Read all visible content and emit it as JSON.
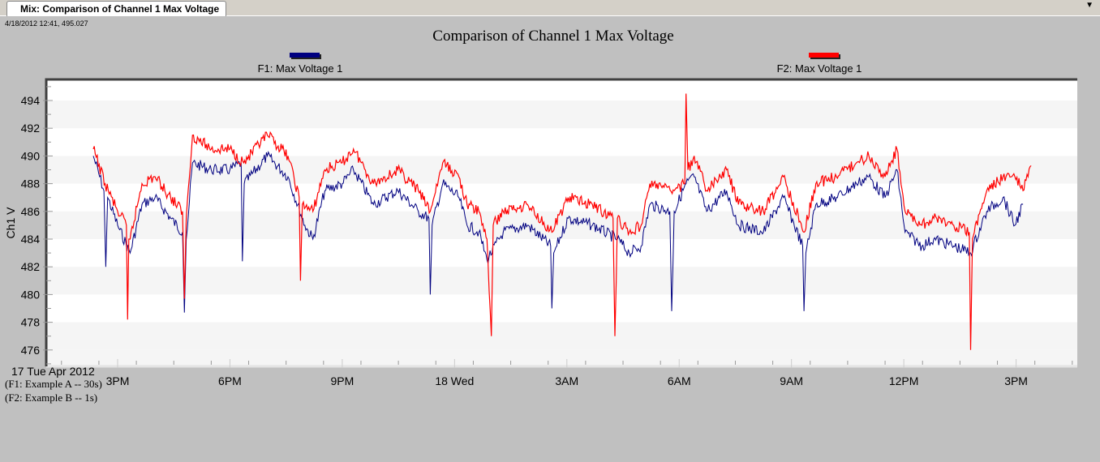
{
  "tab": {
    "label": "Mix: Comparison of Channel 1 Max Voltage",
    "menu_icon": "triangle-down-icon"
  },
  "cursor_readout": "4/18/2012 12:41, 495.027",
  "footer": {
    "date": "17 Tue Apr 2012",
    "f1_source": "(F1: Example A -- 30s)",
    "f2_source": "(F2: Example B -- 1s)"
  },
  "chart_data": {
    "type": "line",
    "title": "Comparison of Channel 1 Max Voltage",
    "xlabel": "",
    "ylabel": "Ch1 V",
    "ylim": [
      474.5,
      496
    ],
    "yticks": [
      494,
      492,
      490,
      488,
      486,
      484,
      482,
      480,
      478,
      476
    ],
    "xlim": [
      "2012-04-17T12:17",
      "2012-04-18T16:40"
    ],
    "xticks": [
      {
        "t": "2012-04-17T15:00",
        "label": "3PM"
      },
      {
        "t": "2012-04-17T18:00",
        "label": "6PM"
      },
      {
        "t": "2012-04-17T21:00",
        "label": "9PM"
      },
      {
        "t": "2012-04-18T00:00",
        "label": "18 Wed"
      },
      {
        "t": "2012-04-18T03:00",
        "label": "3AM"
      },
      {
        "t": "2012-04-18T06:00",
        "label": "6AM"
      },
      {
        "t": "2012-04-18T09:00",
        "label": "9AM"
      },
      {
        "t": "2012-04-18T12:00",
        "label": "12PM"
      },
      {
        "t": "2012-04-18T15:00",
        "label": "3PM"
      }
    ],
    "grid": "horizontal bands",
    "legend_placement": "top",
    "series": [
      {
        "name": "F1: Max Voltage 1",
        "color": "#000080",
        "points": [
          [
            "2012-04-17T14:21",
            490
          ],
          [
            "2012-04-17T14:38",
            487.5
          ],
          [
            "2012-04-17T14:41",
            482
          ],
          [
            "2012-04-17T14:44",
            487
          ],
          [
            "2012-04-17T15:00",
            485
          ],
          [
            "2012-04-17T15:20",
            483
          ],
          [
            "2012-04-17T15:39",
            486.5
          ],
          [
            "2012-04-17T16:00",
            487
          ],
          [
            "2012-04-17T16:25",
            485.5
          ],
          [
            "2012-04-17T16:44",
            484.5
          ],
          [
            "2012-04-17T16:47",
            478.7
          ],
          [
            "2012-04-17T16:50",
            484
          ],
          [
            "2012-04-17T17:00",
            489.5
          ],
          [
            "2012-04-17T17:30",
            489
          ],
          [
            "2012-04-17T18:00",
            489
          ],
          [
            "2012-04-17T18:18",
            489.5
          ],
          [
            "2012-04-17T18:20",
            482.4
          ],
          [
            "2012-04-17T18:23",
            488
          ],
          [
            "2012-04-17T19:00",
            490
          ],
          [
            "2012-04-17T19:33",
            488.5
          ],
          [
            "2012-04-17T20:00",
            485
          ],
          [
            "2012-04-17T20:13",
            484
          ],
          [
            "2012-04-17T20:32",
            487.5
          ],
          [
            "2012-04-17T21:00",
            488
          ],
          [
            "2012-04-17T21:18",
            489
          ],
          [
            "2012-04-17T21:50",
            486.5
          ],
          [
            "2012-04-17T22:29",
            487.5
          ],
          [
            "2012-04-17T23:02",
            486
          ],
          [
            "2012-04-17T23:19",
            485.5
          ],
          [
            "2012-04-17T23:21",
            480
          ],
          [
            "2012-04-17T23:24",
            485
          ],
          [
            "2012-04-17T23:41",
            488
          ],
          [
            "2012-04-18T00:07",
            487
          ],
          [
            "2012-04-18T00:20",
            485
          ],
          [
            "2012-04-18T00:39",
            484.5
          ],
          [
            "2012-04-18T00:52",
            482.5
          ],
          [
            "2012-04-18T01:18",
            484.5
          ],
          [
            "2012-04-18T01:57",
            485
          ],
          [
            "2012-04-18T02:34",
            483.5
          ],
          [
            "2012-04-18T02:36",
            479
          ],
          [
            "2012-04-18T02:39",
            483
          ],
          [
            "2012-04-18T03:02",
            485.5
          ],
          [
            "2012-04-18T03:41",
            485
          ],
          [
            "2012-04-18T04:21",
            484
          ],
          [
            "2012-04-18T04:40",
            483
          ],
          [
            "2012-04-18T04:59",
            483.5
          ],
          [
            "2012-04-18T05:13",
            486.5
          ],
          [
            "2012-04-18T05:45",
            486
          ],
          [
            "2012-04-18T05:48",
            478.8
          ],
          [
            "2012-04-18T05:52",
            486
          ],
          [
            "2012-04-18T06:11",
            488
          ],
          [
            "2012-04-18T06:24",
            488.5
          ],
          [
            "2012-04-18T06:44",
            486
          ],
          [
            "2012-04-18T07:16",
            487.5
          ],
          [
            "2012-04-18T07:35",
            485
          ],
          [
            "2012-04-18T08:15",
            484.5
          ],
          [
            "2012-04-18T08:47",
            487
          ],
          [
            "2012-04-18T09:18",
            483.5
          ],
          [
            "2012-04-18T09:20",
            478.8
          ],
          [
            "2012-04-18T09:23",
            483
          ],
          [
            "2012-04-18T09:39",
            486.5
          ],
          [
            "2012-04-18T10:12",
            487
          ],
          [
            "2012-04-18T10:44",
            488
          ],
          [
            "2012-04-18T11:04",
            488.5
          ],
          [
            "2012-04-18T11:30",
            487
          ],
          [
            "2012-04-18T11:49",
            489
          ],
          [
            "2012-04-18T12:02",
            484.5
          ],
          [
            "2012-04-18T12:29",
            483.5
          ],
          [
            "2012-04-18T12:48",
            484
          ],
          [
            "2012-04-18T13:20",
            483.5
          ],
          [
            "2012-04-18T13:47",
            483
          ],
          [
            "2012-04-18T14:13",
            486
          ],
          [
            "2012-04-18T14:39",
            487
          ],
          [
            "2012-04-18T14:58",
            485
          ],
          [
            "2012-04-18T15:11",
            486.5
          ]
        ]
      },
      {
        "name": "F2: Max Voltage 1",
        "color": "#ff0000",
        "points": [
          [
            "2012-04-17T14:21",
            490.5
          ],
          [
            "2012-04-17T14:40",
            488
          ],
          [
            "2012-04-17T15:00",
            486
          ],
          [
            "2012-04-17T15:14",
            485
          ],
          [
            "2012-04-17T15:16",
            478.2
          ],
          [
            "2012-04-17T15:18",
            484
          ],
          [
            "2012-04-17T15:20",
            484
          ],
          [
            "2012-04-17T15:39",
            488
          ],
          [
            "2012-04-17T16:00",
            488.5
          ],
          [
            "2012-04-17T16:25",
            487
          ],
          [
            "2012-04-17T16:44",
            486
          ],
          [
            "2012-04-17T16:47",
            479.7
          ],
          [
            "2012-04-17T16:50",
            485.5
          ],
          [
            "2012-04-17T17:00",
            491.5
          ],
          [
            "2012-04-17T17:30",
            490.5
          ],
          [
            "2012-04-17T18:00",
            490.5
          ],
          [
            "2012-04-17T18:22",
            489.5
          ],
          [
            "2012-04-17T19:00",
            491.5
          ],
          [
            "2012-04-17T19:33",
            490
          ],
          [
            "2012-04-17T19:51",
            487
          ],
          [
            "2012-04-17T19:53",
            481
          ],
          [
            "2012-04-17T19:56",
            486.5
          ],
          [
            "2012-04-17T20:13",
            486
          ],
          [
            "2012-04-17T20:32",
            489
          ],
          [
            "2012-04-17T21:00",
            489.5
          ],
          [
            "2012-04-17T21:18",
            490.5
          ],
          [
            "2012-04-17T21:50",
            488
          ],
          [
            "2012-04-17T22:29",
            489
          ],
          [
            "2012-04-17T23:02",
            487.5
          ],
          [
            "2012-04-17T23:21",
            486
          ],
          [
            "2012-04-17T23:41",
            489.5
          ],
          [
            "2012-04-18T00:07",
            488.5
          ],
          [
            "2012-04-18T00:20",
            486.5
          ],
          [
            "2012-04-18T00:39",
            486
          ],
          [
            "2012-04-18T00:52",
            484
          ],
          [
            "2012-04-18T00:59",
            477
          ],
          [
            "2012-04-18T01:02",
            485
          ],
          [
            "2012-04-18T01:18",
            486
          ],
          [
            "2012-04-18T01:57",
            486.5
          ],
          [
            "2012-04-18T02:36",
            484.5
          ],
          [
            "2012-04-18T03:02",
            487
          ],
          [
            "2012-04-18T03:41",
            486.5
          ],
          [
            "2012-04-18T04:14",
            485.5
          ],
          [
            "2012-04-18T04:17",
            477
          ],
          [
            "2012-04-18T04:21",
            485.5
          ],
          [
            "2012-04-18T04:40",
            484.5
          ],
          [
            "2012-04-18T04:59",
            485
          ],
          [
            "2012-04-18T05:13",
            488
          ],
          [
            "2012-04-18T05:52",
            487.5
          ],
          [
            "2012-04-18T06:09",
            488
          ],
          [
            "2012-04-18T06:11",
            494.5
          ],
          [
            "2012-04-18T06:14",
            489
          ],
          [
            "2012-04-18T06:24",
            490
          ],
          [
            "2012-04-18T06:44",
            487.5
          ],
          [
            "2012-04-18T07:16",
            489
          ],
          [
            "2012-04-18T07:35",
            486.5
          ],
          [
            "2012-04-18T08:15",
            486
          ],
          [
            "2012-04-18T08:47",
            488.5
          ],
          [
            "2012-04-18T09:20",
            484.5
          ],
          [
            "2012-04-18T09:39",
            488
          ],
          [
            "2012-04-18T10:12",
            488.5
          ],
          [
            "2012-04-18T10:44",
            489.5
          ],
          [
            "2012-04-18T11:04",
            490
          ],
          [
            "2012-04-18T11:30",
            488.5
          ],
          [
            "2012-04-18T11:49",
            490.5
          ],
          [
            "2012-04-18T12:02",
            486
          ],
          [
            "2012-04-18T12:29",
            485
          ],
          [
            "2012-04-18T12:48",
            485.5
          ],
          [
            "2012-04-18T13:20",
            485
          ],
          [
            "2012-04-18T13:45",
            484.5
          ],
          [
            "2012-04-18T13:47",
            476
          ],
          [
            "2012-04-18T13:50",
            484
          ],
          [
            "2012-04-18T13:53",
            484.5
          ],
          [
            "2012-04-18T14:13",
            487.5
          ],
          [
            "2012-04-18T14:39",
            488.5
          ],
          [
            "2012-04-18T14:58",
            488.5
          ],
          [
            "2012-04-18T15:11",
            487.5
          ],
          [
            "2012-04-18T15:24",
            489.3
          ]
        ]
      }
    ]
  }
}
